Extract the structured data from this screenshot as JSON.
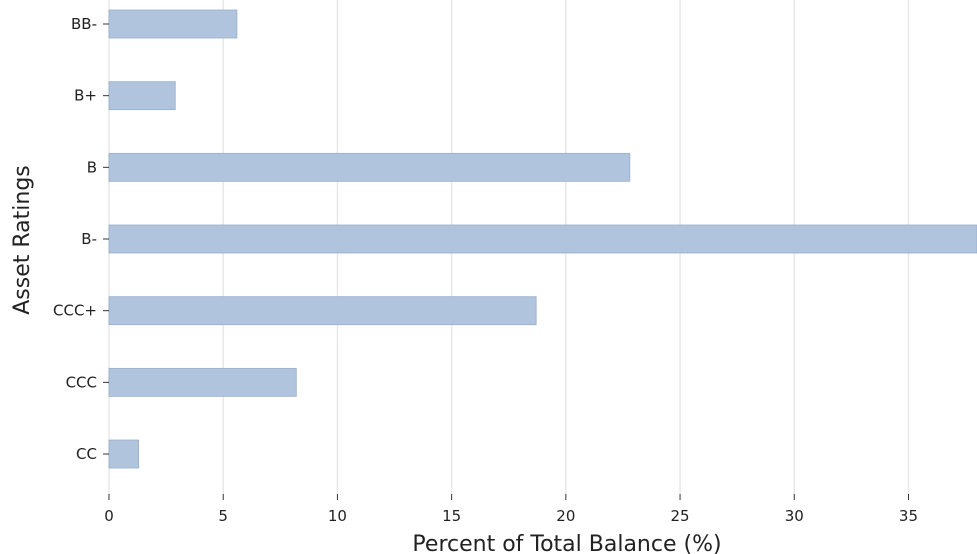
{
  "chart_data": {
    "type": "bar",
    "orientation": "horizontal",
    "categories": [
      "BB-",
      "B+",
      "B",
      "B-",
      "CCC+",
      "CCC",
      "CC"
    ],
    "values": [
      5.6,
      2.9,
      22.8,
      38.0,
      18.7,
      8.2,
      1.3
    ],
    "xlabel": "Percent of Total Balance (%)",
    "ylabel": "Asset Ratings",
    "xlim": [
      0,
      38
    ],
    "xticks": [
      0,
      5,
      10,
      15,
      20,
      25,
      30,
      35
    ],
    "grid": "vertical",
    "bar_color": "#b0c4de"
  }
}
